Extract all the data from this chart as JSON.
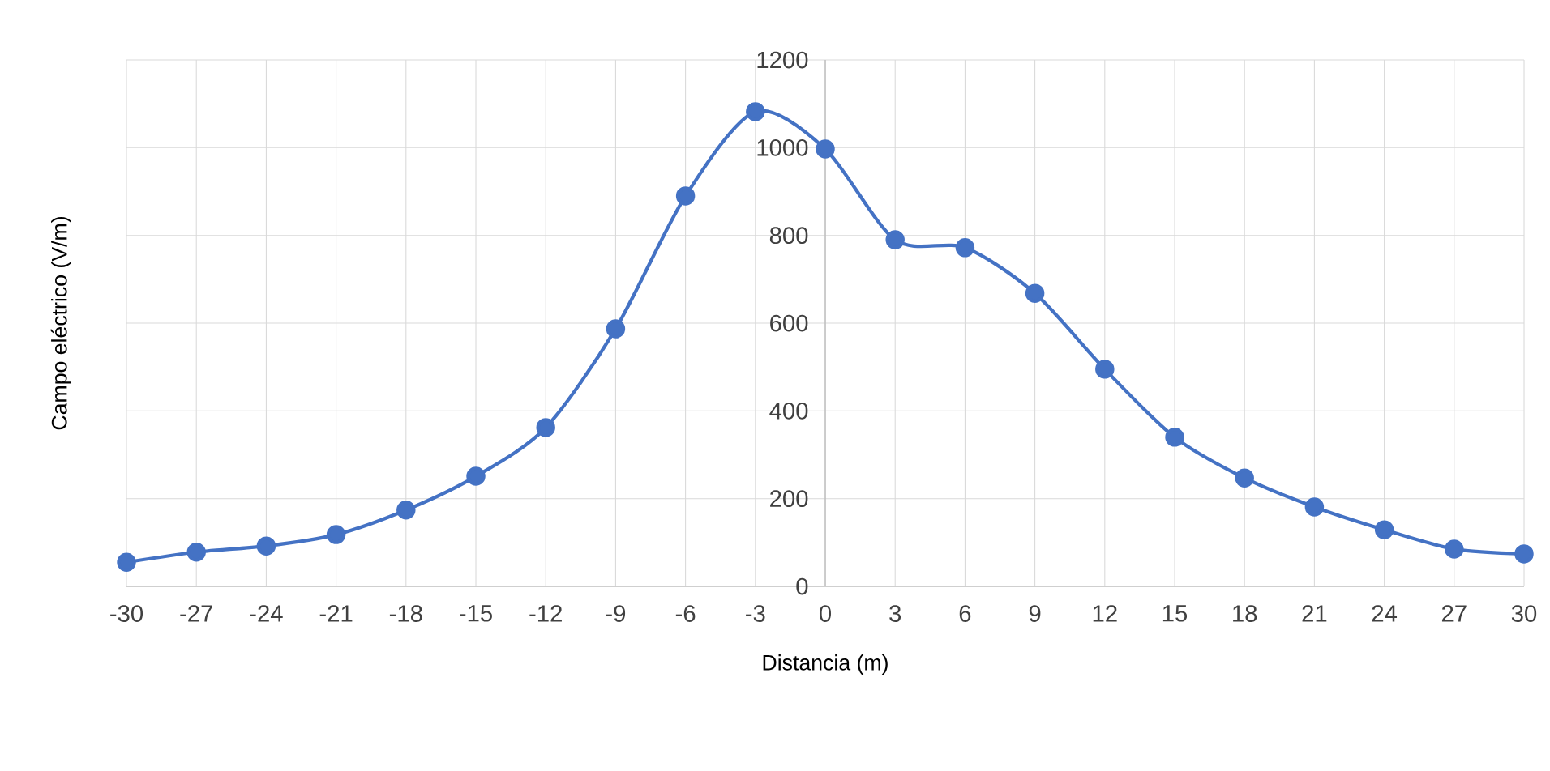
{
  "chart_data": {
    "type": "line",
    "xlabel": "Distancia (m)",
    "ylabel": "Campo eléctrico (V/m)",
    "x": [
      -30,
      -27,
      -24,
      -21,
      -18,
      -15,
      -12,
      -9,
      -6,
      -3,
      0,
      3,
      6,
      9,
      12,
      15,
      18,
      21,
      24,
      27,
      30
    ],
    "series": [
      {
        "color": "#4472c4",
        "values": [
          55,
          78,
          92,
          118,
          174,
          251,
          362,
          587,
          890,
          1082,
          997,
          790,
          772,
          668,
          495,
          340,
          247,
          181,
          129,
          85,
          74
        ]
      }
    ],
    "xlim": [
      -30,
      30
    ],
    "xticks": [
      -30,
      -27,
      -24,
      -21,
      -18,
      -15,
      -12,
      -9,
      -6,
      -3,
      0,
      3,
      6,
      9,
      12,
      15,
      18,
      21,
      24,
      27,
      30
    ],
    "ylim": [
      0,
      1200
    ],
    "yticks": [
      0,
      200,
      400,
      600,
      800,
      1000,
      1200
    ],
    "grid": true,
    "marker": "circle",
    "line_style": "solid"
  }
}
